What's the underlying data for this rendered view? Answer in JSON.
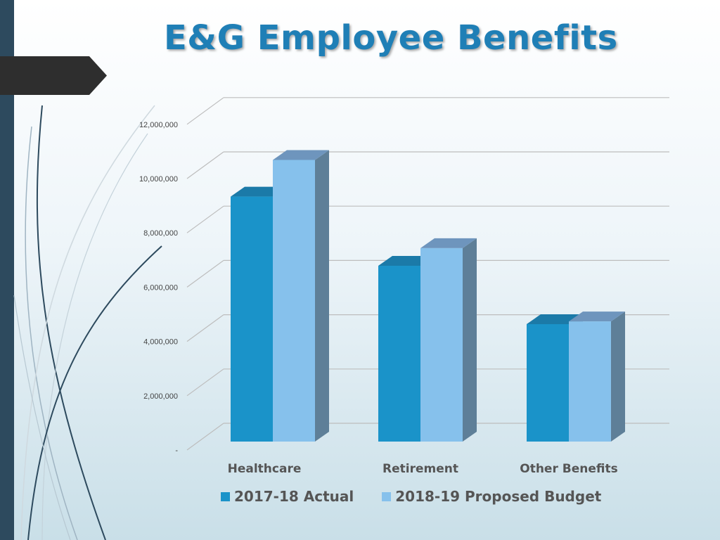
{
  "title": "E&G Employee Benefits",
  "colors": {
    "actual": "#1a93c9",
    "proposed": "#86c1ec",
    "bar_side": "#5e7f98",
    "title": "#1f7fb6"
  },
  "chart_data": {
    "type": "bar",
    "title": "E&G Employee Benefits",
    "categories": [
      "Healthcare",
      "Retirement",
      "Other Benefits"
    ],
    "series": [
      {
        "name": "2017-18 Actual",
        "values": [
          9700000,
          7150000,
          5000000
        ]
      },
      {
        "name": "2018-19 Proposed Budget",
        "values": [
          11050000,
          7800000,
          5100000
        ]
      }
    ],
    "ylim": [
      0,
      12000000
    ],
    "yticks": [
      "-",
      "2,000,000",
      "4,000,000",
      "6,000,000",
      "8,000,000",
      "10,000,000",
      "12,000,000"
    ],
    "grid": true,
    "legend": "bottom",
    "style": "3d-clustered-column"
  }
}
